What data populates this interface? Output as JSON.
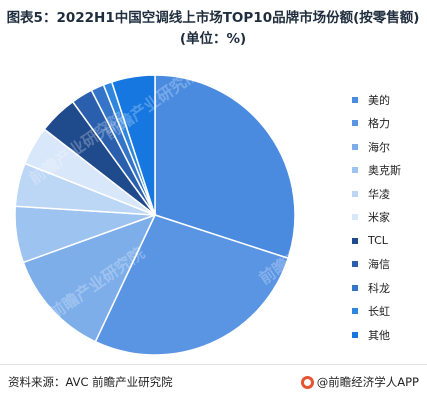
{
  "title": "图表5：2022H1中国空调线上市场TOP10品牌市场份额(按零售额)(单位：%)",
  "chart_data": {
    "type": "pie",
    "title": "图表5：2022H1中国空调线上市场TOP10品牌市场份额(按零售额)(单位：%)",
    "start_angle_deg": 0,
    "direction": "clockwise",
    "categories": [
      "美的",
      "格力",
      "海尔",
      "奥克斯",
      "华凌",
      "米家",
      "TCL",
      "海信",
      "科龙",
      "长虹",
      "其他"
    ],
    "values": [
      30.0,
      27.0,
      12.5,
      6.5,
      5.0,
      4.5,
      4.5,
      2.5,
      1.5,
      1.0,
      5.0
    ],
    "colors": [
      "#4a8be0",
      "#5a95e4",
      "#7daeea",
      "#9dc3f1",
      "#bcd6f5",
      "#d8e7fa",
      "#1f4a8c",
      "#2a5fad",
      "#3474c9",
      "#2f86dd",
      "#1677e0"
    ],
    "legend_position": "right",
    "data_labels": false
  },
  "watermark": {
    "text": "前瞻产业研究院"
  },
  "footer": {
    "source": "资料来源：AVC 前瞻产业研究院",
    "brand": "@前瞻经济学人APP",
    "brand_color": "#e7552f"
  }
}
